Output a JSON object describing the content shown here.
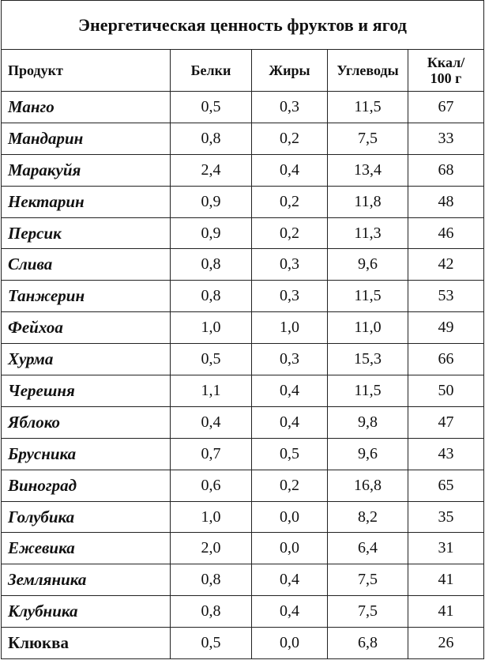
{
  "title": "Энергетическая ценность фруктов и ягод",
  "columns": {
    "product": "Продукт",
    "protein": "Белки",
    "fat": "Жиры",
    "carbs": "Углеводы",
    "kcal_line1": "Ккал/",
    "kcal_line2": "100 г"
  },
  "rows": [
    {
      "product": "Манго",
      "protein": "0,5",
      "fat": "0,3",
      "carbs": "11,5",
      "kcal": "67"
    },
    {
      "product": "Мандарин",
      "protein": "0,8",
      "fat": "0,2",
      "carbs": "7,5",
      "kcal": "33"
    },
    {
      "product": "Маракуйя",
      "protein": "2,4",
      "fat": "0,4",
      "carbs": "13,4",
      "kcal": "68"
    },
    {
      "product": "Нектарин",
      "protein": "0,9",
      "fat": "0,2",
      "carbs": "11,8",
      "kcal": "48"
    },
    {
      "product": "Персик",
      "protein": "0,9",
      "fat": "0,2",
      "carbs": "11,3",
      "kcal": "46"
    },
    {
      "product": "Слива",
      "protein": "0,8",
      "fat": "0,3",
      "carbs": "9,6",
      "kcal": "42"
    },
    {
      "product": "Танжерин",
      "protein": "0,8",
      "fat": "0,3",
      "carbs": "11,5",
      "kcal": "53"
    },
    {
      "product": "Фейхоа",
      "protein": "1,0",
      "fat": "1,0",
      "carbs": "11,0",
      "kcal": "49"
    },
    {
      "product": "Хурма",
      "protein": "0,5",
      "fat": "0,3",
      "carbs": "15,3",
      "kcal": "66"
    },
    {
      "product": "Черешня",
      "protein": "1,1",
      "fat": "0,4",
      "carbs": "11,5",
      "kcal": "50"
    },
    {
      "product": "Яблоко",
      "protein": "0,4",
      "fat": "0,4",
      "carbs": "9,8",
      "kcal": "47"
    },
    {
      "product": "Брусника",
      "protein": "0,7",
      "fat": "0,5",
      "carbs": "9,6",
      "kcal": "43"
    },
    {
      "product": "Виноград",
      "protein": "0,6",
      "fat": "0,2",
      "carbs": "16,8",
      "kcal": "65"
    },
    {
      "product": "Голубика",
      "protein": "1,0",
      "fat": "0,0",
      "carbs": "8,2",
      "kcal": "35"
    },
    {
      "product": "Ежевика",
      "protein": "2,0",
      "fat": "0,0",
      "carbs": "6,4",
      "kcal": "31"
    },
    {
      "product": "Земляника",
      "protein": "0,8",
      "fat": "0,4",
      "carbs": "7,5",
      "kcal": "41"
    },
    {
      "product": "Клубника",
      "protein": "0,8",
      "fat": "0,4",
      "carbs": "7,5",
      "kcal": "41"
    },
    {
      "product": "Клюква",
      "protein": "0,5",
      "fat": "0,0",
      "carbs": "6,8",
      "kcal": "26"
    }
  ]
}
